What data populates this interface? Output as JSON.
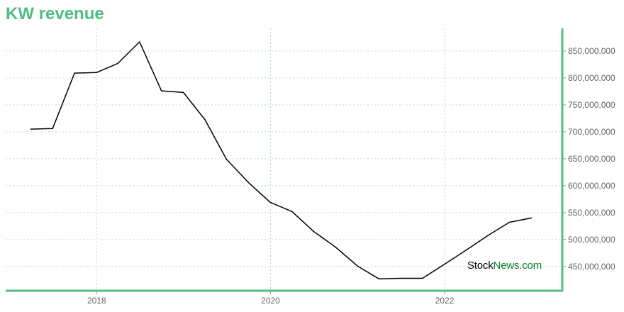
{
  "title": "KW revenue",
  "watermark": {
    "part1": "Stock",
    "part2": "News",
    "part3": ".com"
  },
  "colors": {
    "accent": "#52bd82",
    "line": "#000000",
    "grid": "#b7dcc6"
  },
  "chart_data": {
    "type": "line",
    "title": "KW revenue",
    "xlabel": "",
    "ylabel": "",
    "x_ticks": [
      "2018",
      "2020",
      "2022"
    ],
    "y_ticks": [
      "450,000,000",
      "500,000,000",
      "550,000,000",
      "600,000,000",
      "650,000,000",
      "700,000,000",
      "750,000,000",
      "800,000,000",
      "850,000,000"
    ],
    "ylim": [
      405000000,
      892000000
    ],
    "xlim": [
      "2016-12-15",
      "2023-05-10"
    ],
    "grid": true,
    "series": [
      {
        "x": [
          "2017-03-31",
          "2017-06-30",
          "2017-09-30",
          "2017-12-31",
          "2018-03-31",
          "2018-06-30",
          "2018-09-30",
          "2018-12-31",
          "2019-03-31",
          "2019-06-30",
          "2019-09-30",
          "2019-12-31",
          "2020-03-31",
          "2020-06-30",
          "2020-09-30",
          "2020-12-31",
          "2021-03-31",
          "2021-06-30",
          "2021-09-30",
          "2021-12-31",
          "2022-03-31",
          "2022-06-30",
          "2022-09-30",
          "2022-12-31"
        ],
        "values": [
          705000000,
          706000000,
          809000000,
          810000000,
          827000000,
          867000000,
          776000000,
          773000000,
          723000000,
          649000000,
          606000000,
          569000000,
          552000000,
          515000000,
          486000000,
          451000000,
          427000000,
          428000000,
          428000000,
          454000000,
          480000000,
          507000000,
          532000000,
          540000000
        ]
      }
    ]
  }
}
